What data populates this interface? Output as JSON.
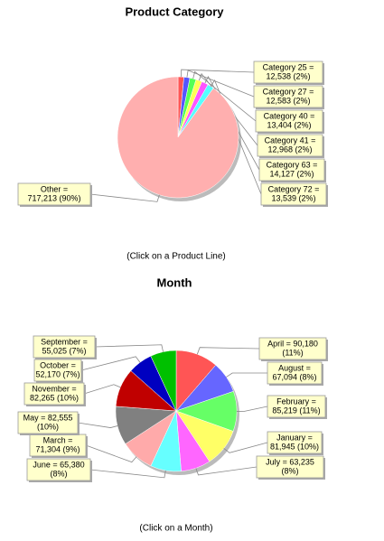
{
  "chart_data": [
    {
      "type": "pie",
      "title": "Product Category",
      "note": "(Click on a Product Line)",
      "values": [
        12538,
        12583,
        13404,
        12968,
        14127,
        13539,
        717213
      ],
      "value_labels": [
        [
          "Category 25 =",
          "12,538 (2%)"
        ],
        [
          "Category 27 =",
          "12,583 (2%)"
        ],
        [
          "Category 40 =",
          "13,404 (2%)"
        ],
        [
          "Category 41 =",
          "12,968 (2%)"
        ],
        [
          "Category 63 =",
          "14,127 (2%)"
        ],
        [
          "Category 72 =",
          "13,539 (2%)"
        ],
        [
          "Other =",
          "717,213 (90%)"
        ]
      ],
      "colors": [
        "#ff5555",
        "#5555ff",
        "#55ff55",
        "#ffff55",
        "#ff55ff",
        "#55ffff",
        "#ffafaf"
      ]
    },
    {
      "type": "pie",
      "title": "Month",
      "note": "(Click on a Month)",
      "values": [
        90180,
        67094,
        85219,
        81945,
        63235,
        65380,
        71304,
        82555,
        82265,
        52170,
        55025
      ],
      "value_labels": [
        [
          "April = 90,180",
          "(11%)"
        ],
        [
          "August =",
          "67,094 (8%)"
        ],
        [
          "February =",
          "85,219 (11%)"
        ],
        [
          "January =",
          "81,945 (10%)"
        ],
        [
          "July = 63,235",
          "(8%)"
        ],
        [
          "June = 65,380",
          "(8%)"
        ],
        [
          "March =",
          "71,304 (9%)"
        ],
        [
          "May = 82,555",
          "(10%)"
        ],
        [
          "November =",
          "82,265 (10%)"
        ],
        [
          "October =",
          "52,170 (7%)"
        ],
        [
          "September =",
          "55,025 (7%)"
        ]
      ],
      "colors": [
        "#ff5555",
        "#6666ff",
        "#66ff66",
        "#ffff66",
        "#ff66ff",
        "#66ffff",
        "#ffaaaa",
        "#808080",
        "#c00000",
        "#0000c0",
        "#00c000"
      ]
    }
  ]
}
